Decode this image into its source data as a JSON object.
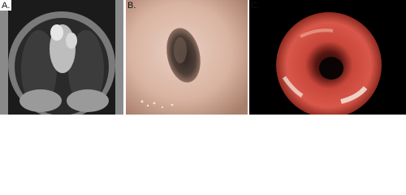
{
  "panels": [
    {
      "label": "A."
    },
    {
      "label": "B."
    },
    {
      "label": "C."
    }
  ]
}
